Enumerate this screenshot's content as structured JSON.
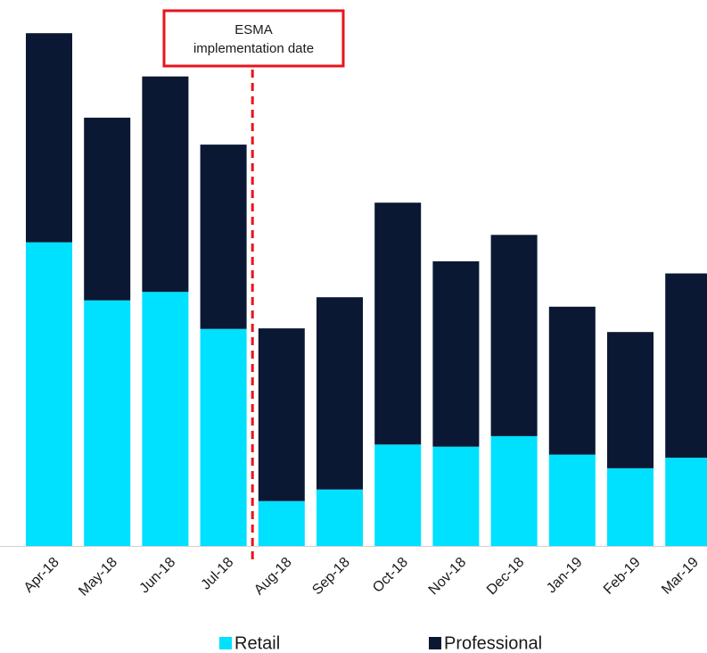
{
  "chart_data": {
    "type": "bar",
    "stacked": true,
    "categories": [
      "Apr-18",
      "May-18",
      "Jun-18",
      "Jul-18",
      "Aug-18",
      "Sep-18",
      "Oct-18",
      "Nov-18",
      "Dec-18",
      "Jan-19",
      "Feb-19",
      "Mar-19"
    ],
    "series": [
      {
        "name": "Retail",
        "color": "#00e0ff",
        "values": [
          57.5,
          46.5,
          48.1,
          41.1,
          8.5,
          10.7,
          19.2,
          18.8,
          20.8,
          17.3,
          14.7,
          16.7
        ]
      },
      {
        "name": "Professional",
        "color": "#0b1833",
        "values": [
          39.6,
          34.6,
          40.8,
          34.9,
          32.7,
          36.4,
          45.8,
          35.1,
          38.1,
          28.0,
          25.8,
          34.9
        ]
      }
    ],
    "ylim": [
      0,
      100
    ],
    "grid": false,
    "legend": "bottom",
    "annotation": {
      "line_after_category": "Jul-18",
      "line_color": "#e8141c",
      "line_style": "dashed",
      "text_line1": "ESMA",
      "text_line2": "implementation date"
    }
  }
}
